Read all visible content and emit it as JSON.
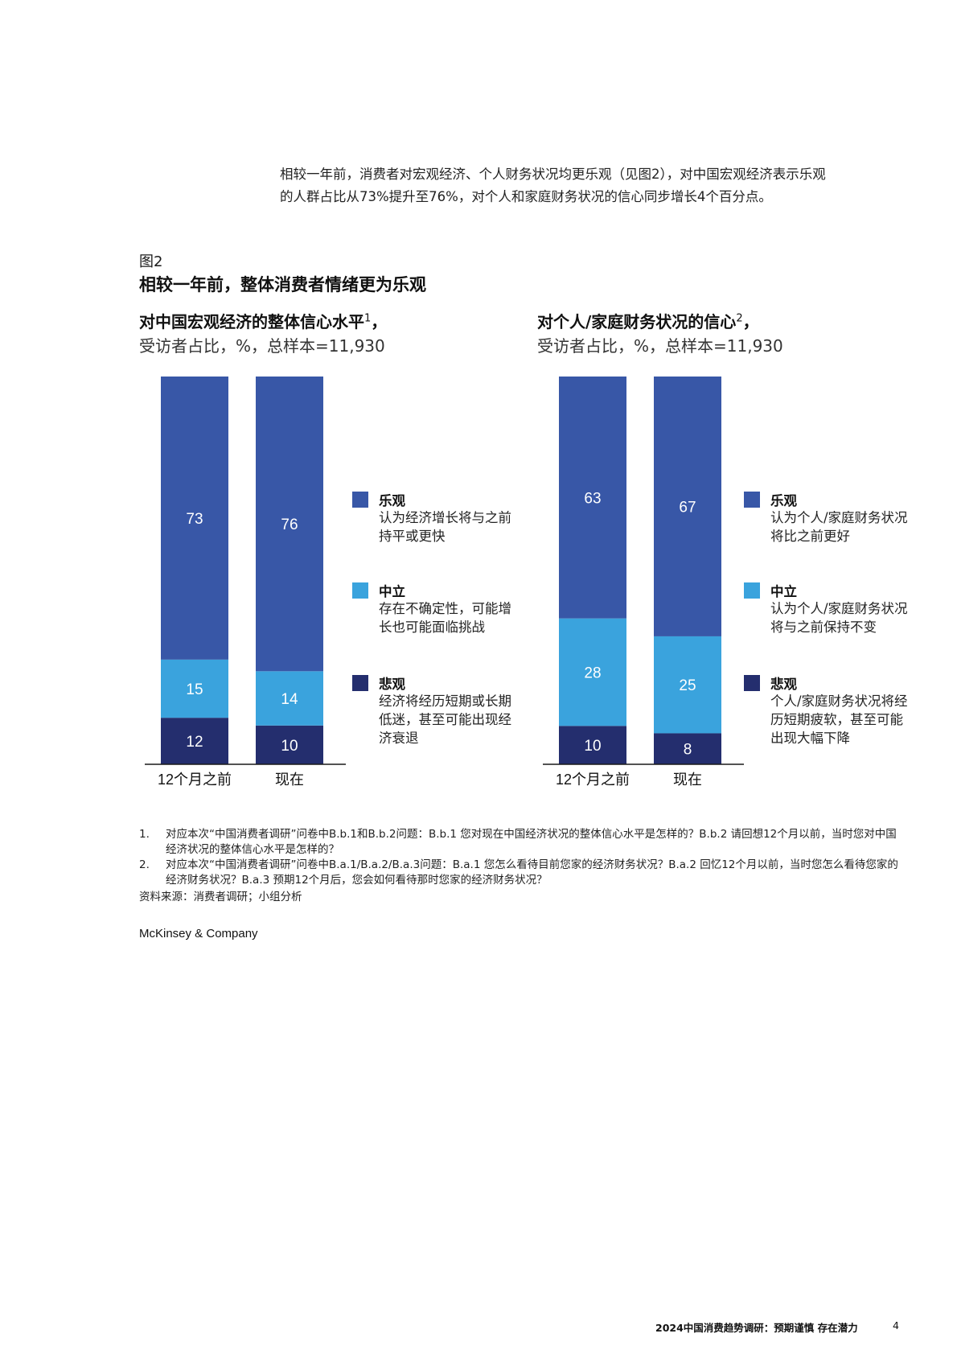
{
  "intro": {
    "line1": "相较一年前，消费者对宏观经济、个人财务状况均更乐观（见图2），对中国宏观经济表示乐观",
    "line2": "的人群占比从73%提升至76%，对个人和家庭财务状况的信心同步增长4个百分点。"
  },
  "figure": {
    "label": "图2",
    "title": "相较一年前，整体消费者情绪更为乐观"
  },
  "colors": {
    "optimistic": "#3857a7",
    "neutral": "#3aa3dd",
    "pessimistic": "#242e6e",
    "axis": "#1a1a1a"
  },
  "chart_data": [
    {
      "type": "bar",
      "stacked": true,
      "title": "对中国宏观经济的整体信心水平",
      "title_sup": "1",
      "title_suffix": "，",
      "subtitle": "受访者占比，%，总样本=11,930",
      "categories": [
        "12个月之前",
        "现在"
      ],
      "series": [
        {
          "name": "悲观",
          "values": [
            12,
            10
          ],
          "color": "#242e6e"
        },
        {
          "name": "中立",
          "values": [
            15,
            14
          ],
          "color": "#3aa3dd"
        },
        {
          "name": "乐观",
          "values": [
            73,
            76
          ],
          "color": "#3857a7"
        }
      ],
      "ylim": [
        0,
        100
      ],
      "legend": [
        {
          "label": "乐观",
          "desc": "认为经济增长将与之前持平或更快",
          "color": "#3857a7"
        },
        {
          "label": "中立",
          "desc": "存在不确定性，可能增长也可能面临挑战",
          "color": "#3aa3dd"
        },
        {
          "label": "悲观",
          "desc": "经济将经历短期或长期低迷，甚至可能出现经济衰退",
          "color": "#242e6e"
        }
      ]
    },
    {
      "type": "bar",
      "stacked": true,
      "title": "对个人/家庭财务状况的信心",
      "title_sup": "2",
      "title_suffix": "，",
      "subtitle": "受访者占比，%，总样本=11,930",
      "categories": [
        "12个月之前",
        "现在"
      ],
      "series": [
        {
          "name": "悲观",
          "values": [
            10,
            8
          ],
          "color": "#242e6e"
        },
        {
          "name": "中立",
          "values": [
            28,
            25
          ],
          "color": "#3aa3dd"
        },
        {
          "name": "乐观",
          "values": [
            63,
            67
          ],
          "color": "#3857a7"
        }
      ],
      "ylim": [
        0,
        100
      ],
      "legend": [
        {
          "label": "乐观",
          "desc": "认为个人/家庭财务状况将比之前更好",
          "color": "#3857a7"
        },
        {
          "label": "中立",
          "desc": "认为个人/家庭财务状况将与之前保持不变",
          "color": "#3aa3dd"
        },
        {
          "label": "悲观",
          "desc": "个人/家庭财务状况将经历短期疲软，甚至可能出现大幅下降",
          "color": "#242e6e"
        }
      ]
    }
  ],
  "notes": [
    {
      "num": "1.",
      "text": "对应本次“中国消费者调研”问卷中B.b.1和B.b.2问题：B.b.1 您对现在中国经济状况的整体信心水平是怎样的？B.b.2 请回想12个月以前，当时您对中国经济状况的整体信心水平是怎样的？"
    },
    {
      "num": "2.",
      "text": "对应本次“中国消费者调研”问卷中B.a.1/B.a.2/B.a.3问题：B.a.1 您怎么看待目前您家的经济财务状况？B.a.2 回忆12个月以前，当时您怎么看待您家的经济财务状况？B.a.3 预期12个月后，您会如何看待那时您家的经济财务状况？"
    }
  ],
  "source": "资料来源：消费者调研；小组分析",
  "brand": "McKinsey & Company",
  "footer": {
    "title": "2024中国消费趋势调研：预期谨慎 存在潜力",
    "page": "4"
  }
}
